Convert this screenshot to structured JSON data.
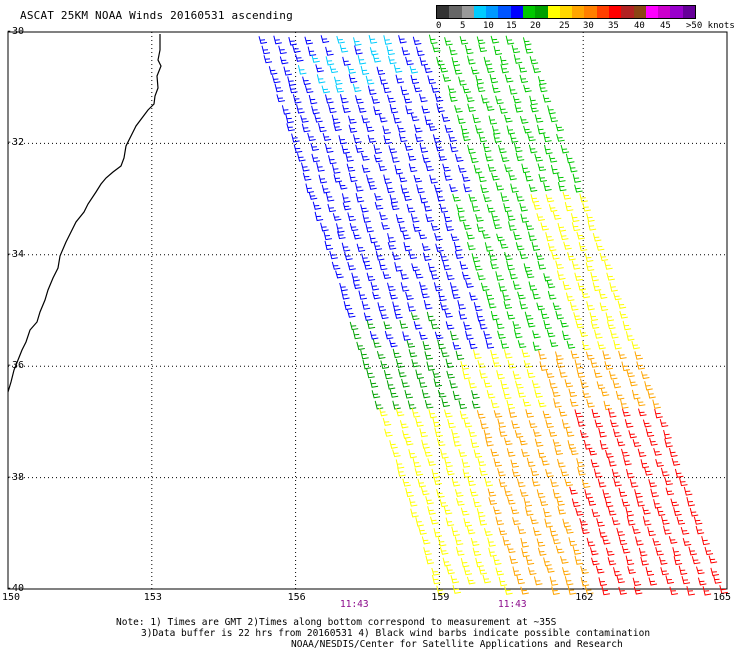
{
  "title": "ASCAT 25KM NOAA Winds 20160531 ascending",
  "legend": {
    "colors": [
      "#333333",
      "#666666",
      "#999999",
      "#00ccff",
      "#0099ff",
      "#0055ff",
      "#0000ff",
      "#00c800",
      "#00a000",
      "#ffff00",
      "#ffd700",
      "#ffa500",
      "#ff7f00",
      "#ff4000",
      "#ff0000",
      "#b22222",
      "#8b4513",
      "#ff00ff",
      "#cc00cc",
      "#9900cc",
      "#660099"
    ],
    "ticks": [
      "0",
      "5",
      "10",
      "15",
      "20",
      "25",
      "30",
      "35",
      "40",
      "45",
      ">50 knots"
    ]
  },
  "axes": {
    "lon_ticks": [
      "150",
      "153",
      "156",
      "159",
      "162",
      "165"
    ],
    "lat_ticks": [
      "-30",
      "-32",
      "-34",
      "-36",
      "-38",
      "-40"
    ],
    "lon_range": [
      150,
      165
    ],
    "lat_range": [
      -30,
      -40
    ]
  },
  "pass_times": [
    "11:43",
    "11:43"
  ],
  "notes": {
    "line1": "Note: 1) Times are GMT 2)Times along bottom correspond to measurement at ~35S",
    "line2": "3)Data buffer is 22 hrs from 20160531 4) Black wind barbs indicate possible contamination",
    "line3": "NOAA/NESDIS/Center for Satellite Applications and Research"
  },
  "grid": true,
  "swath_color_zones": [
    "cyan",
    "blue",
    "green",
    "dark-green",
    "yellow",
    "orange",
    "red"
  ]
}
